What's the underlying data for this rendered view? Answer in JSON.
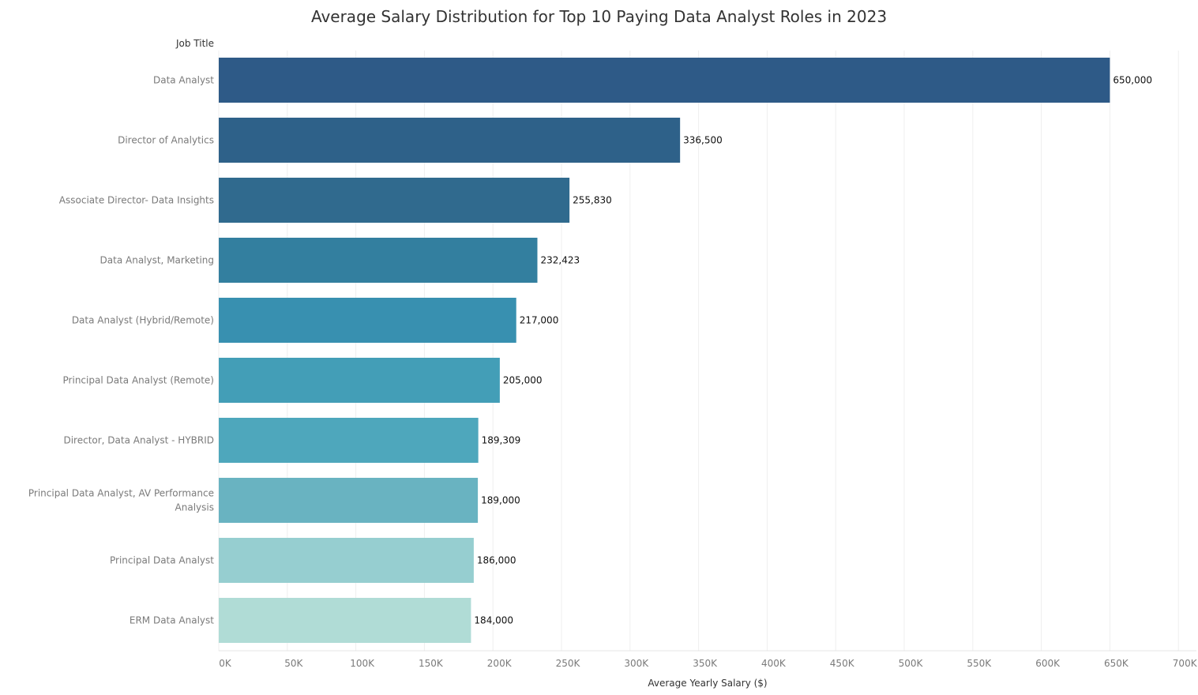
{
  "chart_data": {
    "type": "bar",
    "orientation": "horizontal",
    "title": "Average Salary Distribution for Top 10 Paying Data Analyst Roles in 2023",
    "ylabel": "Job Title",
    "xlabel": "Average Yearly Salary ($)",
    "categories": [
      "Data Analyst",
      "Director of Analytics",
      "Associate Director- Data Insights",
      "Data Analyst, Marketing",
      "Data Analyst (Hybrid/Remote)",
      "Principal Data Analyst (Remote)",
      "Director, Data Analyst - HYBRID",
      "Principal Data Analyst, AV Performance Analysis",
      "Principal Data Analyst",
      "ERM Data Analyst"
    ],
    "category_lines": [
      [
        "Data Analyst"
      ],
      [
        "Director of Analytics"
      ],
      [
        "Associate Director- Data Insights"
      ],
      [
        "Data Analyst, Marketing"
      ],
      [
        "Data Analyst (Hybrid/Remote)"
      ],
      [
        "Principal Data Analyst (Remote)"
      ],
      [
        "Director, Data Analyst - HYBRID"
      ],
      [
        "Principal Data Analyst, AV Performance",
        "Analysis"
      ],
      [
        "Principal Data Analyst"
      ],
      [
        "ERM Data Analyst"
      ]
    ],
    "values": [
      650000,
      336500,
      255830,
      232423,
      217000,
      205000,
      189309,
      189000,
      186000,
      184000
    ],
    "value_labels": [
      "650,000",
      "336,500",
      "255,830",
      "232,423",
      "217,000",
      "205,000",
      "189,309",
      "189,000",
      "186,000",
      "184,000"
    ],
    "xlim": [
      0,
      700000
    ],
    "xticks": [
      0,
      50000,
      100000,
      150000,
      200000,
      250000,
      300000,
      350000,
      400000,
      450000,
      500000,
      550000,
      600000,
      650000,
      700000
    ],
    "xtick_labels": [
      "0K",
      "50K",
      "100K",
      "150K",
      "200K",
      "250K",
      "300K",
      "350K",
      "400K",
      "450K",
      "500K",
      "550K",
      "600K",
      "650K",
      "700K"
    ],
    "bar_colors": [
      "#2e5a87",
      "#2e6189",
      "#306a8e",
      "#337f9f",
      "#3890b0",
      "#439eb7",
      "#4ea7bc",
      "#69b3c1",
      "#96ced0",
      "#b0dcd6"
    ],
    "grid": true,
    "legend": "none"
  }
}
